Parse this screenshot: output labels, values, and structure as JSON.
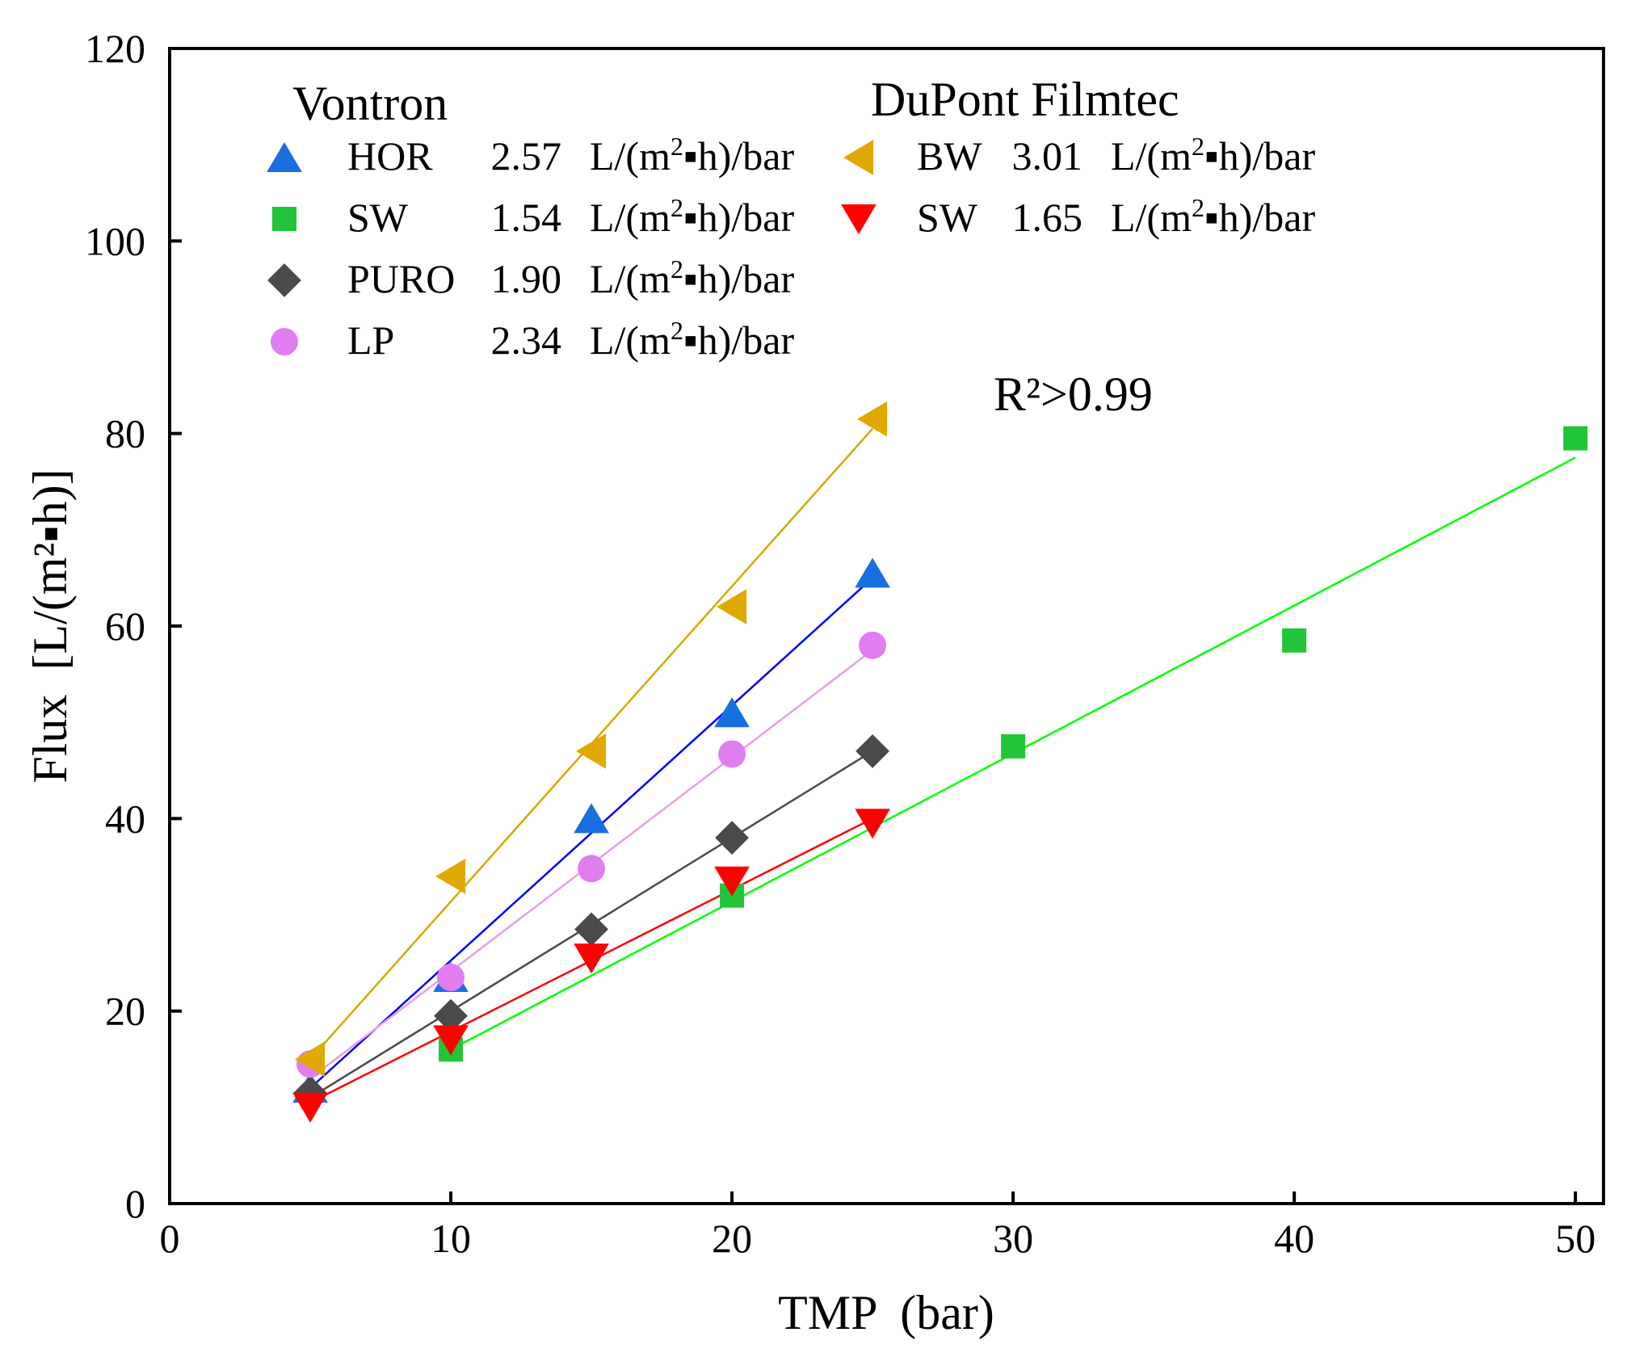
{
  "chart_data": {
    "type": "scatter",
    "xlabel": "TMP  (bar)",
    "ylabel": "Flux  [L/(m²▪h)]",
    "xlim": [
      0,
      51
    ],
    "ylim": [
      0,
      120
    ],
    "xticks": [
      0,
      10,
      20,
      30,
      40,
      50
    ],
    "yticks": [
      0,
      20,
      40,
      60,
      80,
      100,
      120
    ],
    "grid": false,
    "annotation": "R²>0.99",
    "legend_groups": [
      {
        "title": "Vontron",
        "position": "top-left"
      },
      {
        "title": "DuPont Filmtec",
        "position": "top-center"
      }
    ],
    "series": [
      {
        "name": "HOR",
        "group": "Vontron",
        "permeability": "2.57",
        "unit": "L/(m²▪h)/bar",
        "marker": "triangle-up",
        "color": "#1a6fdf",
        "line_color": "#0000ff",
        "x": [
          5,
          10,
          15,
          20,
          25
        ],
        "y": [
          12,
          23.5,
          40,
          51,
          65.5
        ],
        "fit_x": [
          5,
          25
        ],
        "fit_y": [
          12,
          65
        ]
      },
      {
        "name": "SW",
        "group": "Vontron",
        "permeability": "1.54",
        "unit": "L/(m²▪h)/bar",
        "marker": "square",
        "color": "#22c53a",
        "line_color": "#00ff00",
        "x": [
          10,
          20,
          30,
          40,
          50
        ],
        "y": [
          16,
          32,
          47.5,
          58.5,
          79.5
        ],
        "fit_x": [
          10,
          50
        ],
        "fit_y": [
          16,
          77.5
        ]
      },
      {
        "name": "PURO",
        "group": "Vontron",
        "permeability": "1.90",
        "unit": "L/(m²▪h)/bar",
        "marker": "diamond",
        "color": "#4a4a4a",
        "line_color": "#4a4a4a",
        "x": [
          5,
          10,
          15,
          20,
          25
        ],
        "y": [
          11.5,
          19.5,
          28.5,
          38,
          47
        ],
        "fit_x": [
          5,
          25
        ],
        "fit_y": [
          11,
          47
        ]
      },
      {
        "name": "LP",
        "group": "Vontron",
        "permeability": "2.34",
        "unit": "L/(m²▪h)/bar",
        "marker": "circle",
        "color": "#e07ef0",
        "line_color": "#e8a0e0",
        "x": [
          5,
          10,
          15,
          20,
          25
        ],
        "y": [
          14.5,
          23.5,
          34.8,
          46.7,
          58
        ],
        "fit_x": [
          5,
          25
        ],
        "fit_y": [
          13,
          57.5
        ]
      },
      {
        "name": "BW",
        "group": "DuPont Filmtec",
        "permeability": "3.01",
        "unit": "L/(m²▪h)/bar",
        "marker": "triangle-left",
        "color": "#e0a800",
        "line_color": "#d4aa00",
        "x": [
          5,
          10,
          15,
          20,
          25
        ],
        "y": [
          15,
          34,
          47,
          62,
          81.5
        ],
        "fit_x": [
          5,
          25
        ],
        "fit_y": [
          15,
          80.5
        ]
      },
      {
        "name": "SW",
        "group": "DuPont Filmtec",
        "permeability": "1.65",
        "unit": "L/(m²▪h)/bar",
        "marker": "triangle-down",
        "color": "#ff0000",
        "line_color": "#ff0000",
        "x": [
          5,
          10,
          15,
          20,
          25
        ],
        "y": [
          10,
          17,
          25.5,
          33.5,
          39.5
        ],
        "fit_x": [
          5,
          25
        ],
        "fit_y": [
          10.5,
          40
        ]
      }
    ]
  }
}
